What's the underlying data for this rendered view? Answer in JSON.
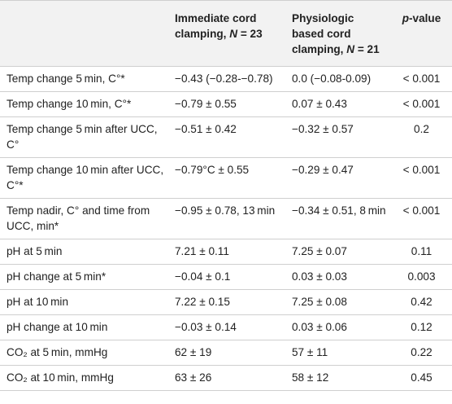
{
  "header": {
    "col1": "",
    "col2_prefix": "Immediate cord clamping, ",
    "col2_n": "N",
    "col2_suffix": " = 23",
    "col3_prefix": "Physiologic based cord clamping, ",
    "col3_n": "N",
    "col3_suffix": " = 21",
    "col4_p": "p",
    "col4_suffix": "-value"
  },
  "rows": [
    {
      "label": "Temp change 5 min, C°*",
      "icc": "−0.43 (−0.28-−0.78)",
      "pbcc": "0.0 (−0.08-0.09)",
      "p": "< 0.001"
    },
    {
      "label": "Temp change 10 min, C°*",
      "icc": "−0.79 ± 0.55",
      "pbcc": "0.07 ± 0.43",
      "p": "< 0.001"
    },
    {
      "label": "Temp change 5 min after UCC, C°",
      "icc": "−0.51 ± 0.42",
      "pbcc": "−0.32 ± 0.57",
      "p": "0.2"
    },
    {
      "label": "Temp change 10 min after UCC, C°*",
      "icc": "−0.79°C ± 0.55",
      "pbcc": "−0.29 ± 0.47",
      "p": "< 0.001"
    },
    {
      "label": "Temp nadir, C° and time from UCC, min*",
      "icc": "−0.95 ± 0.78, 13 min",
      "pbcc": "−0.34 ± 0.51, 8 min",
      "p": "< 0.001"
    },
    {
      "label": "pH at 5 min",
      "icc": "7.21 ± 0.11",
      "pbcc": "7.25 ± 0.07",
      "p": "0.11"
    },
    {
      "label": "pH change at 5 min*",
      "icc": "−0.04 ± 0.1",
      "pbcc": "0.03 ± 0.03",
      "p": "0.003"
    },
    {
      "label": "pH at 10 min",
      "icc": "7.22 ± 0.15",
      "pbcc": "7.25 ± 0.08",
      "p": "0.42"
    },
    {
      "label": "pH change at 10 min",
      "icc": "−0.03 ± 0.14",
      "pbcc": "0.03 ± 0.06",
      "p": "0.12"
    },
    {
      "label": "CO₂ at 5 min, mmHg",
      "icc": "62 ± 19",
      "pbcc": "57 ± 11",
      "p": "0.22"
    },
    {
      "label": "CO₂ at 10 min, mmHg",
      "icc": "63 ± 26",
      "pbcc": "58 ± 12",
      "p": "0.45"
    }
  ]
}
